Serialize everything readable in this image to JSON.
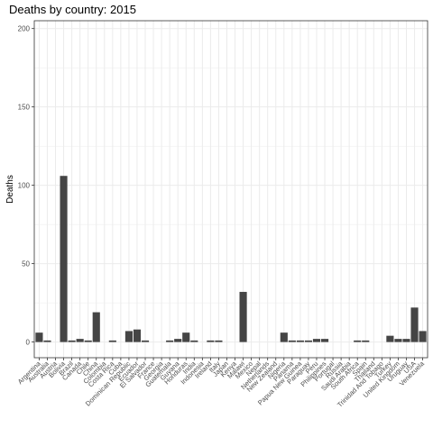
{
  "chart_data": {
    "type": "bar",
    "title": "Deaths by country: 2015",
    "xlabel": "",
    "ylabel": "Deaths",
    "ylim": [
      -10,
      205
    ],
    "yticks": [
      0,
      50,
      100,
      150,
      200
    ],
    "grid": true,
    "bar_color": "#454545",
    "panel_border_color": "#333333",
    "grid_color": "#ebebeb",
    "categories": [
      "Argentina",
      "Australia",
      "Austria",
      "Bolivia",
      "Brazil",
      "Canada",
      "Chile",
      "China",
      "Colombia",
      "Costa Rica",
      "Cuba",
      "Dominican Republic",
      "Ecuador",
      "El Salvador",
      "France",
      "Georgia",
      "Guatemala",
      "Guyana",
      "Honduras",
      "India",
      "Indonesia",
      "Ireland",
      "Italy",
      "Japan",
      "Kenya",
      "Malawi",
      "Mexico",
      "Nepal",
      "Netherlands",
      "New Zealand",
      "Nigeria",
      "Panama",
      "Papua New Guinea",
      "Paraguay",
      "Peru",
      "Philippines",
      "Portugal",
      "Russia",
      "Saudi Arabia",
      "South Africa",
      "Spain",
      "Thailand",
      "Trinidad And Tobago",
      "Turkey",
      "United Kingdom",
      "Uruguay",
      "USA",
      "Venezuela"
    ],
    "values": [
      6,
      1,
      0,
      106,
      1,
      2,
      1,
      19,
      0,
      1,
      0,
      7,
      8,
      1,
      0,
      0,
      1,
      2,
      6,
      1,
      0,
      1,
      1,
      0,
      0,
      32,
      0,
      0,
      0,
      0,
      6,
      1,
      1,
      1,
      2,
      2,
      0,
      0,
      0,
      1,
      1,
      0,
      0,
      4,
      2,
      2,
      22,
      7
    ]
  }
}
